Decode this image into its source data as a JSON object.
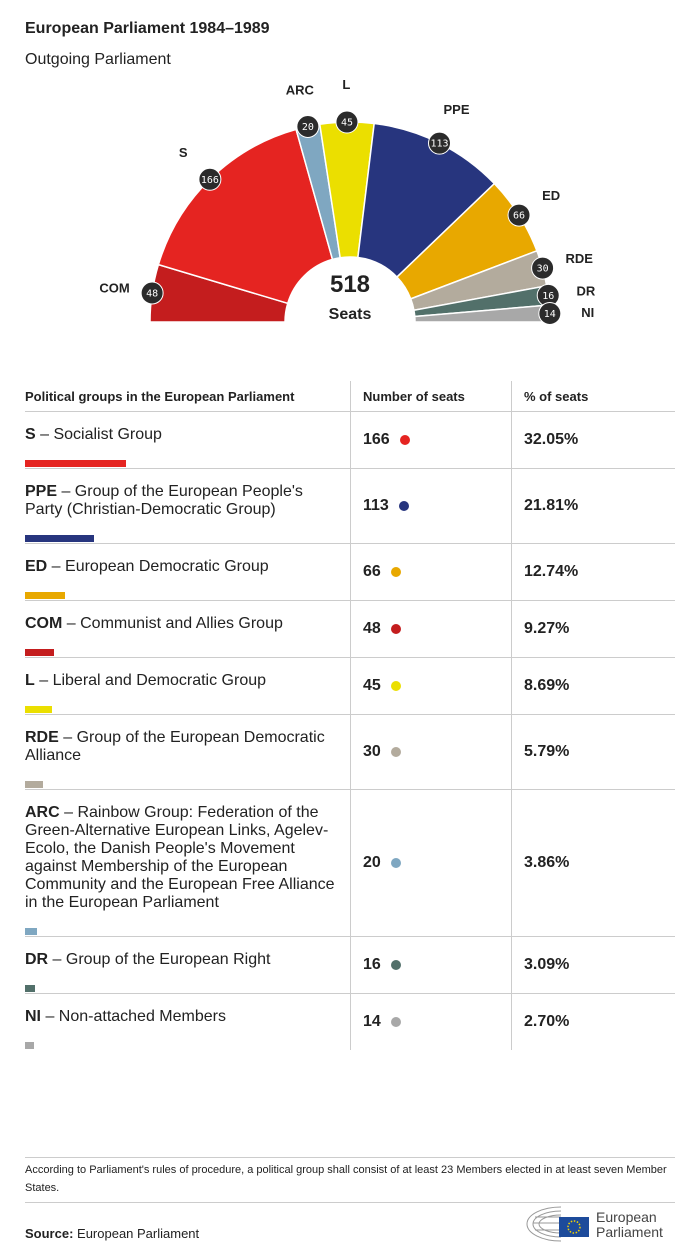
{
  "header": {
    "title": "European Parliament 1984–1989",
    "subtitle": "Outgoing Parliament"
  },
  "chart_data": {
    "type": "hemicycle",
    "total": 518,
    "total_label": "Seats",
    "groups": [
      {
        "abbr": "COM",
        "seats": 48,
        "color": "#c41d1e"
      },
      {
        "abbr": "S",
        "seats": 166,
        "color": "#e52421"
      },
      {
        "abbr": "ARC",
        "seats": 20,
        "color": "#7fa7c1"
      },
      {
        "abbr": "L",
        "seats": 45,
        "color": "#ebdf00"
      },
      {
        "abbr": "PPE",
        "seats": 113,
        "color": "#27357e"
      },
      {
        "abbr": "ED",
        "seats": 66,
        "color": "#e8a800"
      },
      {
        "abbr": "RDE",
        "seats": 30,
        "color": "#b3ab9d"
      },
      {
        "abbr": "DR",
        "seats": 16,
        "color": "#52706a"
      },
      {
        "abbr": "NI",
        "seats": 14,
        "color": "#a8a8a8"
      }
    ]
  },
  "table": {
    "headers": [
      "Political groups in the European Parliament",
      "Number of seats",
      "% of seats"
    ],
    "rows": [
      {
        "abbr": "S",
        "name": " – Socialist Group",
        "seats": "166",
        "pct": "32.05%",
        "color": "#e52421"
      },
      {
        "abbr": "PPE",
        "name": " – Group of the European People's Party (Christian-Democratic Group)",
        "seats": "113",
        "pct": "21.81%",
        "color": "#27357e"
      },
      {
        "abbr": "ED",
        "name": " – European Democratic Group",
        "seats": "66",
        "pct": "12.74%",
        "color": "#e8a800"
      },
      {
        "abbr": "COM",
        "name": " – Communist and Allies Group",
        "seats": "48",
        "pct": "9.27%",
        "color": "#c41d1e"
      },
      {
        "abbr": "L",
        "name": " – Liberal and Democratic Group",
        "seats": "45",
        "pct": "8.69%",
        "color": "#ebdf00"
      },
      {
        "abbr": "RDE",
        "name": " – Group of the European Democratic Alliance",
        "seats": "30",
        "pct": "5.79%",
        "color": "#b3ab9d"
      },
      {
        "abbr": "ARC",
        "name": " – Rainbow Group: Federation of the Green-Alternative European Links, Agelev-Ecolo, the Danish People's Movement against Membership of the European Community and the European Free Alliance in the European Parliament",
        "seats": "20",
        "pct": "3.86%",
        "color": "#7fa7c1"
      },
      {
        "abbr": "DR",
        "name": " – Group of the European Right",
        "seats": "16",
        "pct": "3.09%",
        "color": "#52706a"
      },
      {
        "abbr": "NI",
        "name": " – Non-attached Members",
        "seats": "14",
        "pct": "2.70%",
        "color": "#a8a8a8"
      }
    ]
  },
  "footer": {
    "note": "According to Parliament's rules of procedure, a political group shall consist of at least 23 Members elected in at least seven Member States.",
    "source_label": "Source:",
    "source": " European Parliament",
    "logo_text": "European Parliament"
  }
}
